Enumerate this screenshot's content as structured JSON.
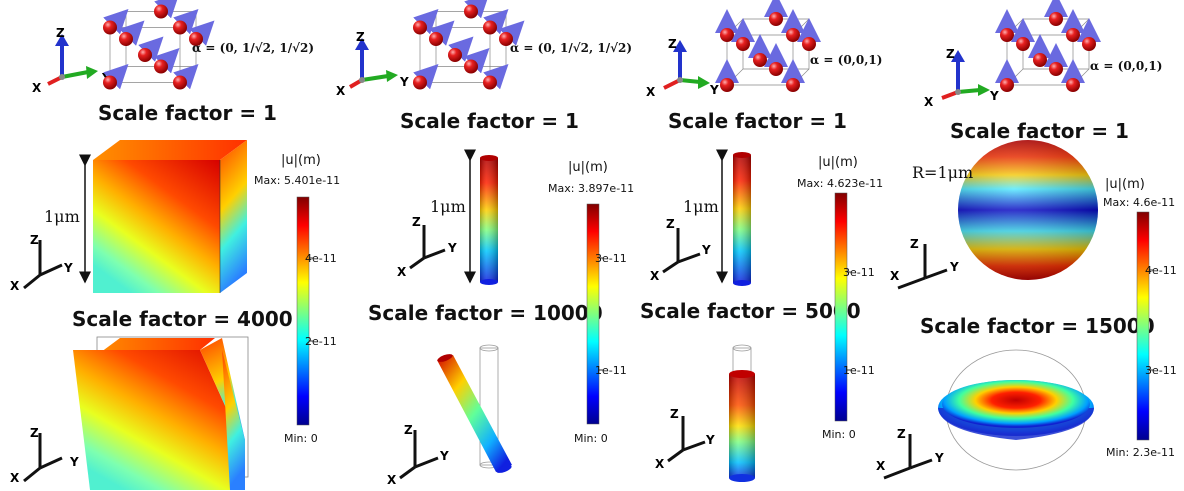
{
  "panels": [
    {
      "alpha": "α = (0, 1/√2, 1/√2)",
      "alpha_short": "(0, 1/√2, 1/√2)",
      "scale_top": "Scale factor = 1",
      "scale_mid": "Scale factor = 4000",
      "size_label": "1μm",
      "colorbar": {
        "title": "|u|(m)",
        "max": "Max: 5.401e-11",
        "min": "Min: 0",
        "ticks": [
          "4e-11",
          "2e-11"
        ]
      }
    },
    {
      "alpha": "α = (0, 1/√2, 1/√2)",
      "alpha_short": "(0, 1/√2, 1/√2)",
      "scale_top": "Scale factor = 1",
      "scale_mid": "Scale factor = 10000",
      "size_label": "1μm",
      "colorbar": {
        "title": "|u|(m)",
        "max": "Max: 3.897e-11",
        "min": "Min: 0",
        "ticks": [
          "3e-11",
          "1e-11"
        ]
      }
    },
    {
      "alpha": "α = (0,0,1)",
      "alpha_short": "(0,0,1)",
      "scale_top": "Scale factor = 1",
      "scale_mid": "Scale factor = 5000",
      "size_label": "1μm",
      "colorbar": {
        "title": "|u|(m)",
        "max": "Max: 4.623e-11",
        "min": "Min: 0",
        "ticks": [
          "3e-11",
          "1e-11"
        ]
      }
    },
    {
      "alpha": "α = (0,0,1)",
      "alpha_short": "(0,0,1)",
      "scale_top": "Scale factor = 1",
      "scale_mid": "Scale factor = 15000",
      "size_label": "R=1μm",
      "colorbar": {
        "title": "|u|(m)",
        "max": "Max: 4.6e-11",
        "min": "Min: 2.3e-11",
        "ticks": [
          "4e-11",
          "3e-11"
        ]
      }
    }
  ],
  "axes": {
    "x": "X",
    "y": "Y",
    "z": "Z"
  },
  "colors": {
    "axis_x": "#e02020",
    "axis_y": "#22aa22",
    "axis_z": "#2233cc",
    "atom": "#d41818",
    "arrow": "#7b7bea"
  }
}
